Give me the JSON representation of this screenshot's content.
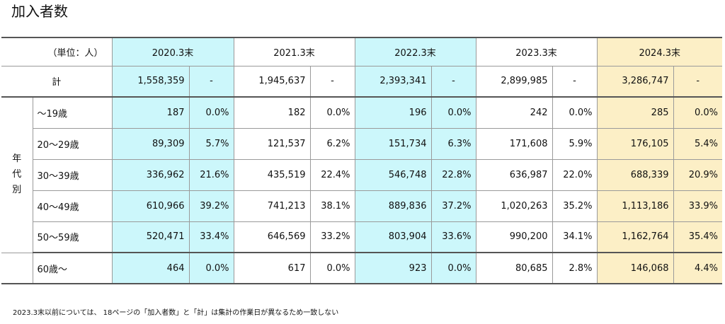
{
  "title": "加入者数",
  "unit_label": "（単位：人）",
  "year_headers": [
    "2020.3末",
    "2021.3末",
    "2022.3末",
    "2023.3末",
    "2024.3末"
  ],
  "total_row": {
    "label": "計",
    "values": [
      "1,558,359",
      "1,945,637",
      "2,393,341",
      "2,899,985",
      "3,286,747"
    ],
    "pcts": [
      "-",
      "-",
      "-",
      "-",
      "-"
    ]
  },
  "group_label": "年代別",
  "age_rows": [
    {
      "age": "～19歳",
      "values": [
        "187",
        "182",
        "196",
        "242",
        "285"
      ],
      "pcts": [
        "0.0%",
        "0.0%",
        "0.0%",
        "0.0%",
        "0.0%"
      ]
    },
    {
      "age": "20～29歳",
      "values": [
        "89,309",
        "121,537",
        "151,734",
        "171,608",
        "176,105"
      ],
      "pcts": [
        "5.7%",
        "6.2%",
        "6.3%",
        "5.9%",
        "5.4%"
      ]
    },
    {
      "age": "30～39歳",
      "values": [
        "336,962",
        "435,519",
        "546,748",
        "636,987",
        "688,339"
      ],
      "pcts": [
        "21.6%",
        "22.4%",
        "22.8%",
        "22.0%",
        "20.9%"
      ]
    },
    {
      "age": "40～49歳",
      "values": [
        "610,966",
        "741,213",
        "889,836",
        "1,020,263",
        "1,113,186"
      ],
      "pcts": [
        "39.2%",
        "38.1%",
        "37.2%",
        "35.2%",
        "33.9%"
      ]
    },
    {
      "age": "50～59歳",
      "values": [
        "520,471",
        "646,569",
        "803,904",
        "990,200",
        "1,162,764"
      ],
      "pcts": [
        "33.4%",
        "33.2%",
        "33.6%",
        "34.1%",
        "35.4%"
      ]
    }
  ],
  "last_row": {
    "age": "60歳～",
    "values": [
      "464",
      "617",
      "923",
      "80,685",
      "146,068"
    ],
    "pcts": [
      "0.0%",
      "0.0%",
      "0.0%",
      "2.8%",
      "4.4%"
    ]
  },
  "note": "2023.3末以前については、 18ページの「加入者数」と「計」は集計の作業日が異なるため一致しない",
  "colors": {
    "cyan_column": "#ccf7fb",
    "gold_column": "#fcefc6",
    "border": "#9a9a9a"
  }
}
